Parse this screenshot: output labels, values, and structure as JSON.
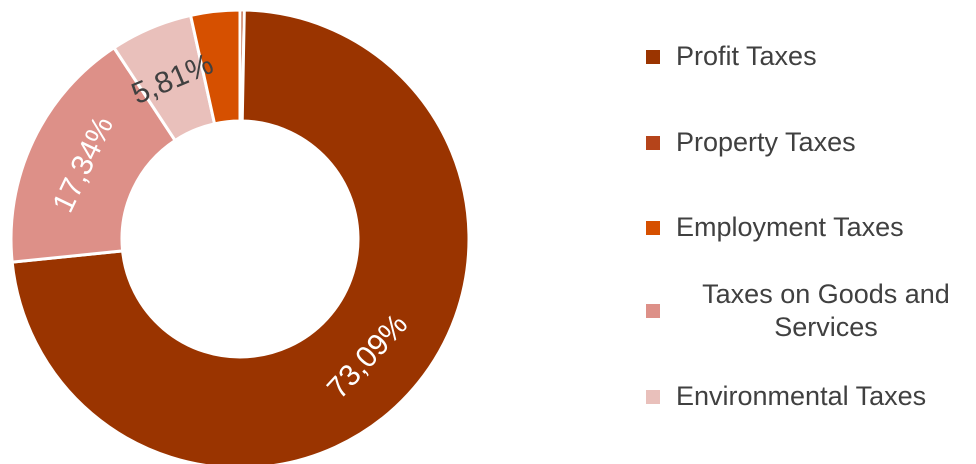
{
  "chart_data": {
    "type": "pie",
    "style": "donut",
    "categories": [
      "Profit Taxes",
      "Property Taxes",
      "Employment Taxes",
      "Taxes on Goods and Services",
      "Environmental Taxes"
    ],
    "values": [
      73.09,
      0.3,
      3.46,
      17.34,
      5.81
    ],
    "value_labels": [
      "73,09%",
      "",
      "",
      "17,34%",
      "5,81%"
    ],
    "colors": [
      "#9a3400",
      "#b5441a",
      "#d65000",
      "#dd9088",
      "#e9c0bb"
    ],
    "label_colors": [
      "#ffffff",
      "#ffffff",
      "#ffffff",
      "#ffffff",
      "#404040"
    ],
    "legend_position": "right",
    "slice_order_in_ring": [
      1,
      0,
      3,
      4,
      2
    ]
  },
  "legend": {
    "items": [
      {
        "label": "Profit Taxes",
        "color": "#9a3400"
      },
      {
        "label": "Property Taxes",
        "color": "#b5441a"
      },
      {
        "label": "Employment Taxes",
        "color": "#d65000"
      },
      {
        "label": "Taxes on Goods and Services",
        "color": "#dd9088"
      },
      {
        "label": "Environmental Taxes",
        "color": "#e9c0bb"
      }
    ]
  }
}
